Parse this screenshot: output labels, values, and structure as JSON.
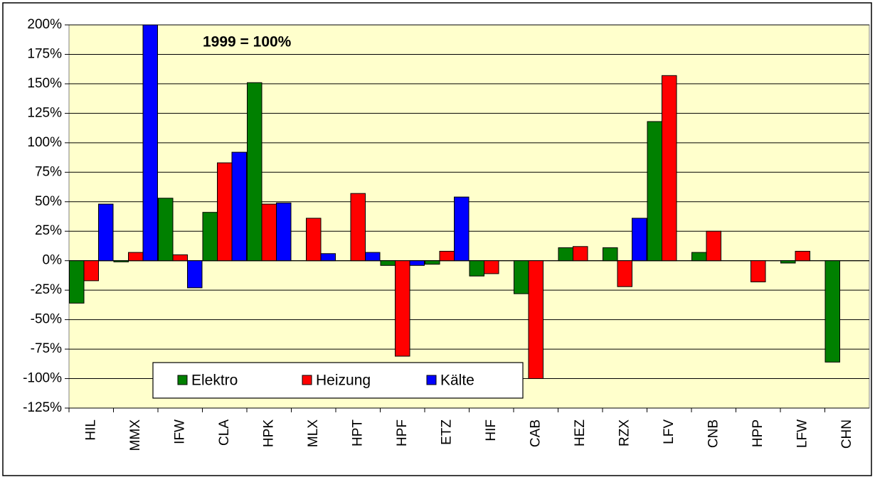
{
  "chart_data": {
    "type": "bar",
    "annotation": "1999 = 100%",
    "categories": [
      "HIL",
      "MMX",
      "IFW",
      "CLA",
      "HPK",
      "MLX",
      "HPT",
      "HPF",
      "ETZ",
      "HIF",
      "CAB",
      "HEZ",
      "RZX",
      "LFV",
      "CNB",
      "HPP",
      "LFW",
      "CHN"
    ],
    "series": [
      {
        "name": "Elektro",
        "color": "#008000",
        "values": [
          -36,
          -1,
          53,
          41,
          151,
          null,
          null,
          -4,
          -3,
          -13,
          -28,
          11,
          11,
          118,
          7,
          null,
          -2,
          -86
        ]
      },
      {
        "name": "Heizung",
        "color": "#ff0000",
        "values": [
          -17,
          7,
          5,
          83,
          48,
          36,
          57,
          -81,
          8,
          -11,
          -100,
          12,
          -22,
          157,
          25,
          -18,
          8,
          null
        ]
      },
      {
        "name": "Kälte",
        "color": "#0000ff",
        "values": [
          48,
          200,
          -23,
          92,
          49,
          6,
          7,
          -4,
          54,
          null,
          null,
          null,
          36,
          null,
          null,
          null,
          null,
          null
        ]
      }
    ],
    "ylim": [
      -125,
      200
    ],
    "yticks": [
      {
        "value": -125,
        "label": "-125%"
      },
      {
        "value": -100,
        "label": "-100%"
      },
      {
        "value": -75,
        "label": "-75%"
      },
      {
        "value": -50,
        "label": "-50%"
      },
      {
        "value": -25,
        "label": "-25%"
      },
      {
        "value": 0,
        "label": "0%"
      },
      {
        "value": 25,
        "label": "25%"
      },
      {
        "value": 50,
        "label": "50%"
      },
      {
        "value": 75,
        "label": "75%"
      },
      {
        "value": 100,
        "label": "100%"
      },
      {
        "value": 125,
        "label": "125%"
      },
      {
        "value": 150,
        "label": "150%"
      },
      {
        "value": 175,
        "label": "175%"
      },
      {
        "value": 200,
        "label": "200%"
      }
    ],
    "grid": true,
    "legend": "lower-left",
    "background": "#ffffcc"
  }
}
